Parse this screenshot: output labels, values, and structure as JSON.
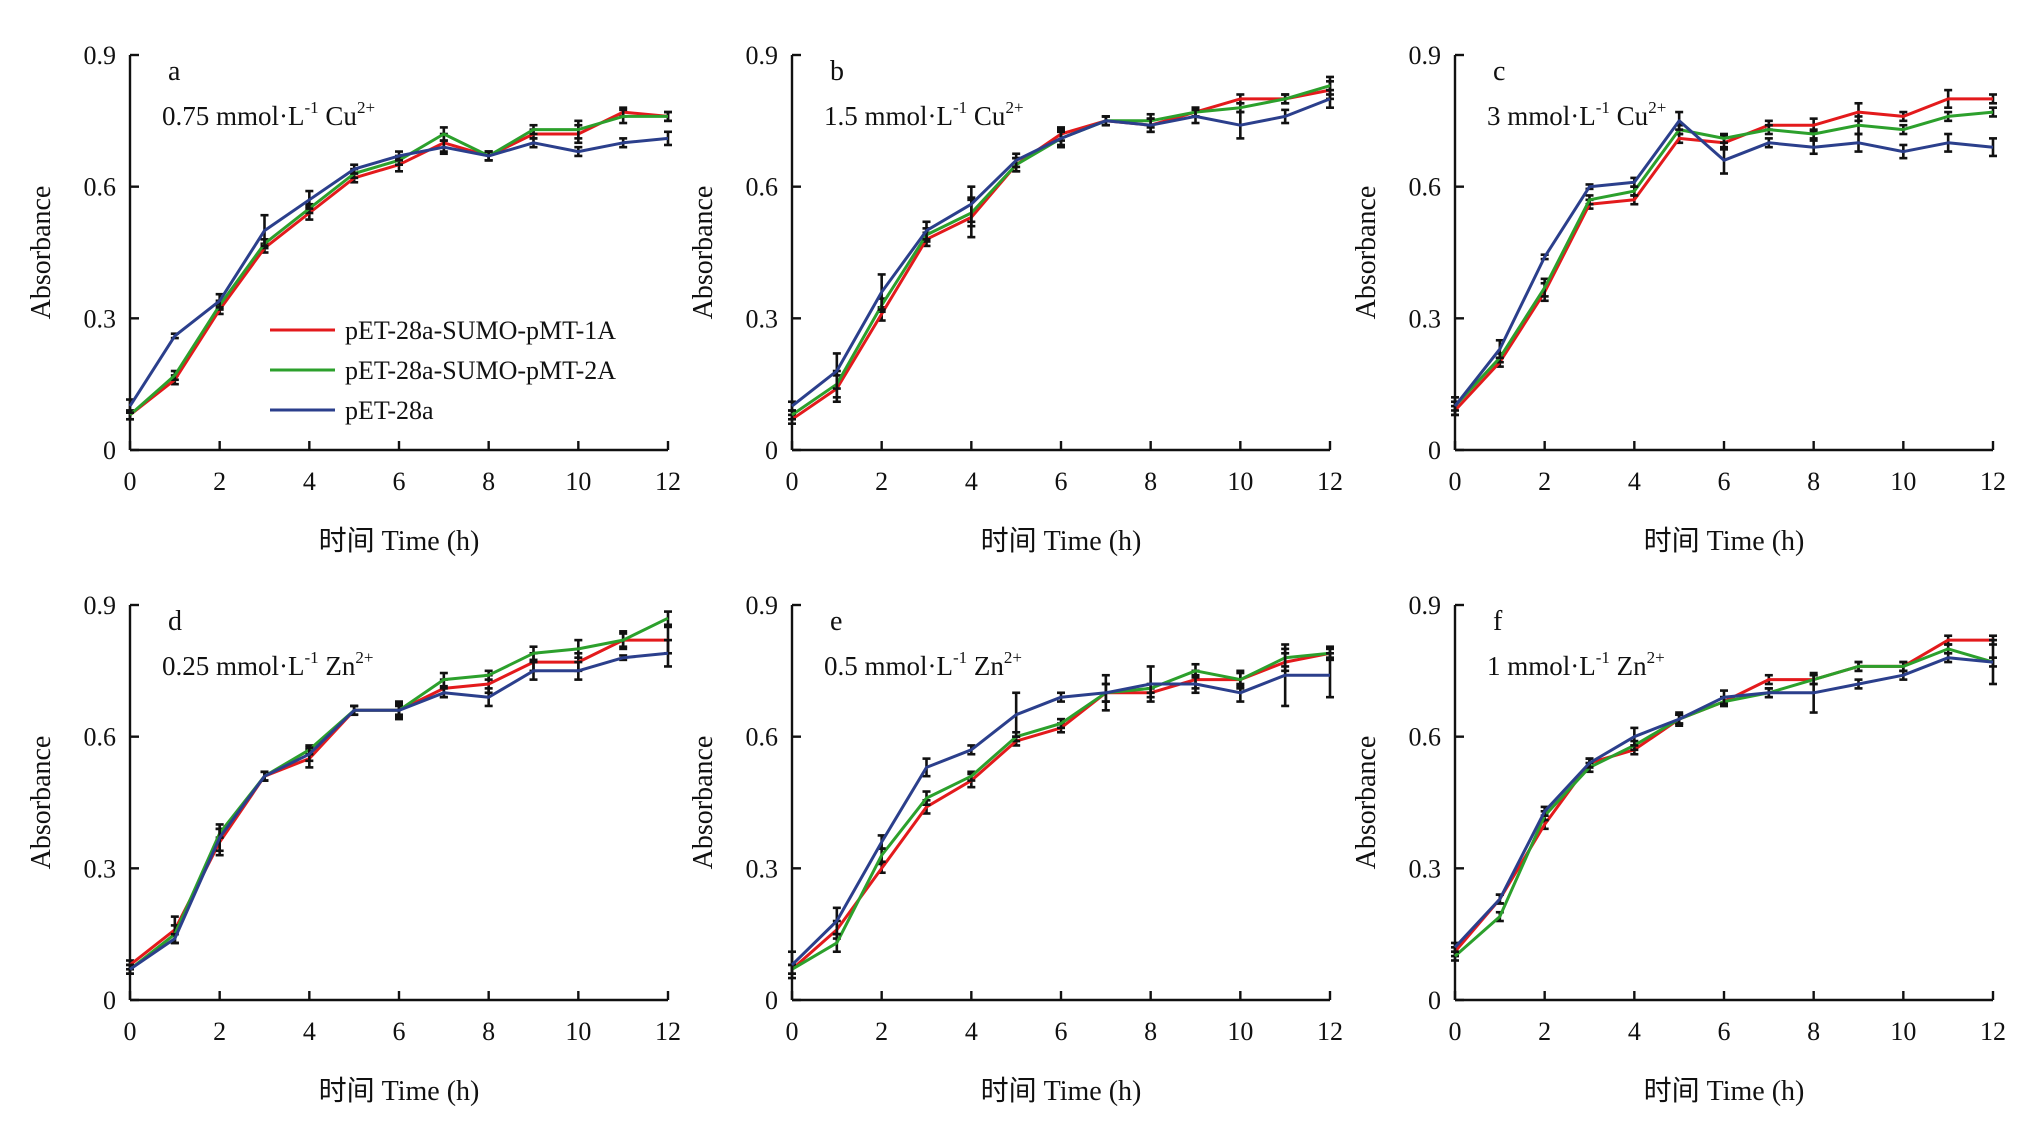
{
  "figure": {
    "ylabel": "Absorbance",
    "xlabel": "时间 Time (h)"
  },
  "series_meta": [
    {
      "name": "pET-28a-SUMO-pMT-1A",
      "color": "#e31a1c"
    },
    {
      "name": "pET-28a-SUMO-pMT-2A",
      "color": "#2ca02c"
    },
    {
      "name": "pET-28a",
      "color": "#2b3f8c"
    }
  ],
  "chart_data": [
    {
      "type": "line",
      "panel": "a",
      "condition": {
        "text": "0.75 mmol·L",
        "sup1": "-1",
        "ion": " Cu",
        "sup2": "2+"
      },
      "x": [
        0,
        1,
        2,
        3,
        4,
        5,
        6,
        7,
        8,
        9,
        10,
        11,
        12
      ],
      "xlim": [
        0,
        12
      ],
      "ylim": [
        0,
        0.9
      ],
      "xticks": [
        "0",
        "2",
        "4",
        "6",
        "8",
        "10",
        "12"
      ],
      "yticks": [
        "0",
        "0.3",
        "0.6",
        "0.9"
      ],
      "legend": true,
      "series": [
        {
          "name": "pET-28a-SUMO-pMT-1A",
          "values": [
            0.08,
            0.16,
            0.32,
            0.46,
            0.54,
            0.62,
            0.65,
            0.7,
            0.67,
            0.72,
            0.72,
            0.77,
            0.76
          ],
          "err": [
            0.01,
            0.01,
            0.01,
            0.01,
            0.015,
            0.01,
            0.015,
            0.02,
            0.01,
            0.01,
            0.02,
            0.01,
            0.01
          ]
        },
        {
          "name": "pET-28a-SUMO-pMT-2A",
          "values": [
            0.08,
            0.17,
            0.33,
            0.47,
            0.55,
            0.63,
            0.66,
            0.72,
            0.67,
            0.73,
            0.73,
            0.76,
            0.76
          ],
          "err": [
            0.01,
            0.01,
            0.01,
            0.01,
            0.01,
            0.01,
            0.01,
            0.015,
            0.01,
            0.01,
            0.02,
            0.015,
            0.01
          ]
        },
        {
          "name": "pET-28a",
          "values": [
            0.1,
            0.26,
            0.34,
            0.5,
            0.57,
            0.64,
            0.67,
            0.69,
            0.67,
            0.7,
            0.68,
            0.7,
            0.71
          ],
          "err": [
            0.015,
            0.005,
            0.015,
            0.035,
            0.02,
            0.01,
            0.01,
            0.015,
            0.01,
            0.01,
            0.01,
            0.01,
            0.015
          ]
        }
      ]
    },
    {
      "type": "line",
      "panel": "b",
      "condition": {
        "text": "1.5 mmol·L",
        "sup1": "-1",
        "ion": " Cu",
        "sup2": "2+"
      },
      "x": [
        0,
        1,
        2,
        3,
        4,
        5,
        6,
        7,
        8,
        9,
        10,
        11,
        12
      ],
      "xlim": [
        0,
        12
      ],
      "ylim": [
        0,
        0.9
      ],
      "xticks": [
        "0",
        "2",
        "4",
        "6",
        "8",
        "10",
        "12"
      ],
      "yticks": [
        "0",
        "0.3",
        "0.6",
        "0.9"
      ],
      "series": [
        {
          "name": "pET-28a-SUMO-pMT-1A",
          "values": [
            0.07,
            0.14,
            0.31,
            0.48,
            0.53,
            0.65,
            0.72,
            0.75,
            0.74,
            0.77,
            0.8,
            0.8,
            0.82
          ],
          "err": [
            0.01,
            0.03,
            0.015,
            0.015,
            0.045,
            0.015,
            0.015,
            0.01,
            0.015,
            0.01,
            0.01,
            0.01,
            0.02
          ]
        },
        {
          "name": "pET-28a-SUMO-pMT-2A",
          "values": [
            0.08,
            0.15,
            0.33,
            0.49,
            0.54,
            0.65,
            0.71,
            0.75,
            0.75,
            0.77,
            0.78,
            0.8,
            0.83
          ],
          "err": [
            0.01,
            0.03,
            0.015,
            0.015,
            0.03,
            0.015,
            0.015,
            0.01,
            0.015,
            0.01,
            0.01,
            0.01,
            0.02
          ]
        },
        {
          "name": "pET-28a",
          "values": [
            0.1,
            0.18,
            0.36,
            0.5,
            0.56,
            0.66,
            0.71,
            0.75,
            0.74,
            0.76,
            0.74,
            0.76,
            0.8
          ],
          "err": [
            0.01,
            0.04,
            0.04,
            0.02,
            0.04,
            0.015,
            0.02,
            0.01,
            0.015,
            0.015,
            0.03,
            0.015,
            0.02
          ]
        }
      ]
    },
    {
      "type": "line",
      "panel": "c",
      "condition": {
        "text": "3 mmol·L",
        "sup1": "-1",
        "ion": " Cu",
        "sup2": "2+"
      },
      "x": [
        0,
        1,
        2,
        3,
        4,
        5,
        6,
        7,
        8,
        9,
        10,
        11,
        12
      ],
      "xlim": [
        0,
        12
      ],
      "ylim": [
        0,
        0.9
      ],
      "xticks": [
        "0",
        "2",
        "4",
        "6",
        "8",
        "10",
        "12"
      ],
      "yticks": [
        "0",
        "0.3",
        "0.6",
        "0.9"
      ],
      "series": [
        {
          "name": "pET-28a-SUMO-pMT-1A",
          "values": [
            0.09,
            0.2,
            0.36,
            0.56,
            0.57,
            0.71,
            0.7,
            0.74,
            0.74,
            0.77,
            0.76,
            0.8,
            0.8
          ],
          "err": [
            0.01,
            0.01,
            0.02,
            0.01,
            0.01,
            0.01,
            0.015,
            0.01,
            0.015,
            0.02,
            0.01,
            0.02,
            0.01
          ]
        },
        {
          "name": "pET-28a-SUMO-pMT-2A",
          "values": [
            0.1,
            0.21,
            0.37,
            0.57,
            0.59,
            0.73,
            0.71,
            0.73,
            0.72,
            0.74,
            0.73,
            0.76,
            0.77
          ],
          "err": [
            0.01,
            0.01,
            0.02,
            0.01,
            0.01,
            0.01,
            0.01,
            0.01,
            0.01,
            0.02,
            0.01,
            0.01,
            0.01
          ]
        },
        {
          "name": "pET-28a",
          "values": [
            0.1,
            0.23,
            0.44,
            0.6,
            0.61,
            0.75,
            0.66,
            0.7,
            0.69,
            0.7,
            0.68,
            0.7,
            0.69
          ],
          "err": [
            0.02,
            0.02,
            0.005,
            0.005,
            0.01,
            0.02,
            0.03,
            0.01,
            0.015,
            0.02,
            0.015,
            0.02,
            0.02
          ]
        }
      ]
    },
    {
      "type": "line",
      "panel": "d",
      "condition": {
        "text": "0.25 mmol·L",
        "sup1": "-1",
        "ion": " Zn",
        "sup2": "2+"
      },
      "x": [
        0,
        1,
        2,
        3,
        4,
        5,
        6,
        7,
        8,
        9,
        10,
        11,
        12
      ],
      "xlim": [
        0,
        12
      ],
      "ylim": [
        0,
        0.9
      ],
      "xticks": [
        "0",
        "2",
        "4",
        "6",
        "8",
        "10",
        "12"
      ],
      "yticks": [
        "0",
        "0.3",
        "0.6",
        "0.9"
      ],
      "series": [
        {
          "name": "pET-28a-SUMO-pMT-1A",
          "values": [
            0.08,
            0.16,
            0.36,
            0.51,
            0.55,
            0.66,
            0.66,
            0.71,
            0.72,
            0.77,
            0.77,
            0.82,
            0.82
          ],
          "err": [
            0.01,
            0.03,
            0.03,
            0.01,
            0.02,
            0.01,
            0.02,
            0.02,
            0.02,
            0.02,
            0.02,
            0.02,
            0.03
          ]
        },
        {
          "name": "pET-28a-SUMO-pMT-2A",
          "values": [
            0.07,
            0.15,
            0.38,
            0.51,
            0.57,
            0.66,
            0.66,
            0.73,
            0.74,
            0.79,
            0.8,
            0.82,
            0.87
          ],
          "err": [
            0.01,
            0.02,
            0.01,
            0.01,
            0.01,
            0.01,
            0.01,
            0.015,
            0.01,
            0.015,
            0.02,
            0.015,
            0.015
          ]
        },
        {
          "name": "pET-28a",
          "values": [
            0.07,
            0.14,
            0.37,
            0.51,
            0.56,
            0.66,
            0.66,
            0.7,
            0.69,
            0.75,
            0.75,
            0.78,
            0.79
          ],
          "err": [
            0.01,
            0.01,
            0.03,
            0.01,
            0.015,
            0.01,
            0.015,
            0.01,
            0.02,
            0.02,
            0.02,
            0.005,
            0.03
          ]
        }
      ]
    },
    {
      "type": "line",
      "panel": "e",
      "condition": {
        "text": "0.5 mmol·L",
        "sup1": "-1",
        "ion": " Zn",
        "sup2": "2+"
      },
      "x": [
        0,
        1,
        2,
        3,
        4,
        5,
        6,
        7,
        8,
        9,
        10,
        11,
        12
      ],
      "xlim": [
        0,
        12
      ],
      "ylim": [
        0,
        0.9
      ],
      "xticks": [
        "0",
        "2",
        "4",
        "6",
        "8",
        "10",
        "12"
      ],
      "yticks": [
        "0",
        "0.3",
        "0.6",
        "0.9"
      ],
      "series": [
        {
          "name": "pET-28a-SUMO-pMT-1A",
          "values": [
            0.07,
            0.16,
            0.3,
            0.44,
            0.5,
            0.59,
            0.62,
            0.7,
            0.7,
            0.73,
            0.73,
            0.77,
            0.79
          ],
          "err": [
            0.01,
            0.02,
            0.01,
            0.015,
            0.015,
            0.01,
            0.01,
            0.02,
            0.01,
            0.02,
            0.02,
            0.02,
            0.015
          ]
        },
        {
          "name": "pET-28a-SUMO-pMT-2A",
          "values": [
            0.07,
            0.13,
            0.33,
            0.46,
            0.51,
            0.6,
            0.63,
            0.7,
            0.71,
            0.75,
            0.73,
            0.78,
            0.79
          ],
          "err": [
            0.01,
            0.02,
            0.015,
            0.015,
            0.01,
            0.01,
            0.01,
            0.02,
            0.01,
            0.015,
            0.015,
            0.02,
            0.01
          ]
        },
        {
          "name": "pET-28a",
          "values": [
            0.08,
            0.18,
            0.36,
            0.53,
            0.57,
            0.65,
            0.69,
            0.7,
            0.72,
            0.72,
            0.7,
            0.74,
            0.74
          ],
          "err": [
            0.03,
            0.03,
            0.015,
            0.02,
            0.01,
            0.05,
            0.01,
            0.04,
            0.04,
            0.02,
            0.02,
            0.07,
            0.05
          ]
        }
      ]
    },
    {
      "type": "line",
      "panel": "f",
      "condition": {
        "text": "1 mmol·L",
        "sup1": "-1",
        "ion": " Zn",
        "sup2": "2+"
      },
      "x": [
        0,
        1,
        2,
        3,
        4,
        5,
        6,
        7,
        8,
        9,
        10,
        11,
        12
      ],
      "xlim": [
        0,
        12
      ],
      "ylim": [
        0,
        0.9
      ],
      "xticks": [
        "0",
        "2",
        "4",
        "6",
        "8",
        "10",
        "12"
      ],
      "yticks": [
        "0",
        "0.3",
        "0.6",
        "0.9"
      ],
      "series": [
        {
          "name": "pET-28a-SUMO-pMT-1A",
          "values": [
            0.11,
            0.23,
            0.4,
            0.54,
            0.57,
            0.64,
            0.68,
            0.73,
            0.73,
            0.76,
            0.76,
            0.82,
            0.82
          ],
          "err": [
            0.01,
            0.01,
            0.01,
            0.01,
            0.01,
            0.01,
            0.01,
            0.01,
            0.01,
            0.01,
            0.01,
            0.01,
            0.01
          ]
        },
        {
          "name": "pET-28a-SUMO-pMT-2A",
          "values": [
            0.1,
            0.19,
            0.42,
            0.53,
            0.58,
            0.64,
            0.68,
            0.7,
            0.73,
            0.76,
            0.76,
            0.8,
            0.77
          ],
          "err": [
            0.01,
            0.01,
            0.01,
            0.01,
            0.01,
            0.01,
            0.01,
            0.01,
            0.01,
            0.01,
            0.01,
            0.01,
            0.01
          ]
        },
        {
          "name": "pET-28a",
          "values": [
            0.12,
            0.23,
            0.43,
            0.54,
            0.6,
            0.64,
            0.69,
            0.7,
            0.7,
            0.72,
            0.74,
            0.78,
            0.77
          ],
          "err": [
            0.01,
            0.01,
            0.01,
            0.01,
            0.02,
            0.015,
            0.015,
            0.01,
            0.045,
            0.01,
            0.01,
            0.01,
            0.05
          ]
        }
      ]
    }
  ]
}
